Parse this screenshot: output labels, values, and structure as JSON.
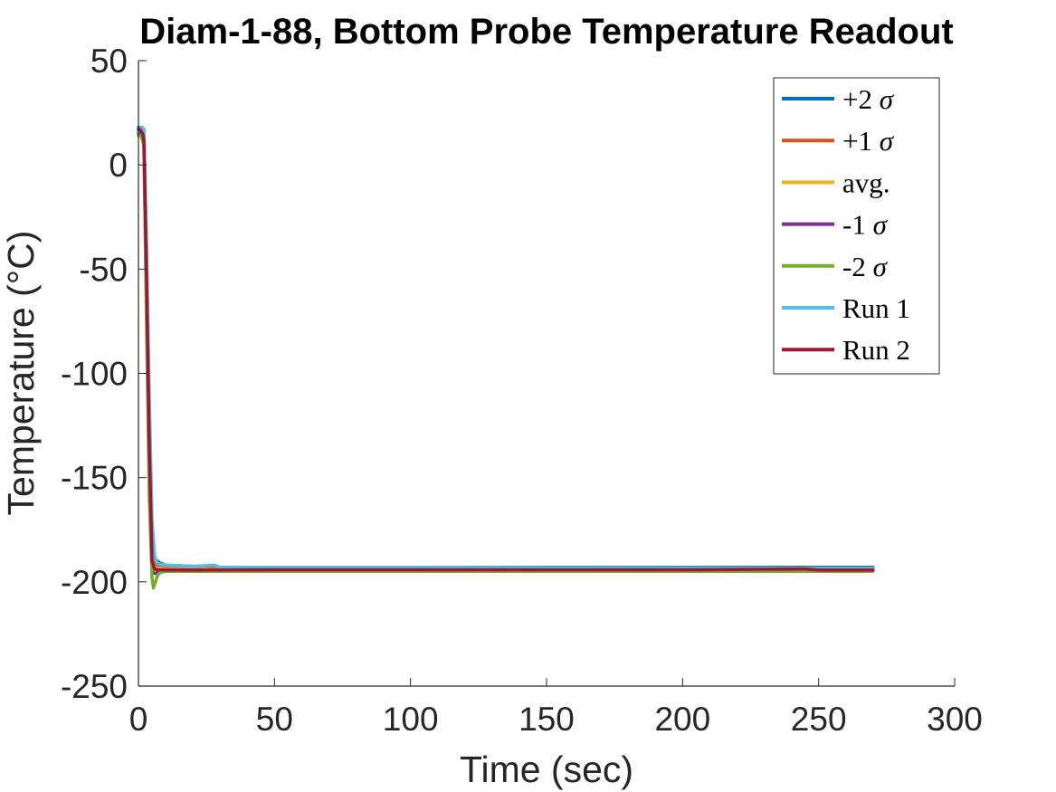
{
  "chart_data": {
    "type": "line",
    "title": "Diam-1-88, Bottom Probe Temperature Readout",
    "xlabel": "Time (sec)",
    "ylabel": "Temperature (°C)",
    "xlim": [
      0,
      300
    ],
    "ylim": [
      -250,
      50
    ],
    "xticks": [
      "0",
      "50",
      "100",
      "150",
      "200",
      "250",
      "300"
    ],
    "yticks": [
      "50",
      "0",
      "-50",
      "-100",
      "-150",
      "-200",
      "-250"
    ],
    "grid": false,
    "legend_position": "top-right",
    "series": [
      {
        "name": "+2 σ",
        "label_text": "+2",
        "color": "#0072BD",
        "x": [
          0,
          0.5,
          1,
          2,
          3,
          4,
          5,
          6,
          8,
          10,
          20,
          30,
          50,
          100,
          150,
          200,
          250,
          270
        ],
        "y": [
          18,
          18,
          18,
          17,
          -40,
          -120,
          -175,
          -189,
          -191,
          -192,
          -192.5,
          -193,
          -193,
          -193,
          -193,
          -193,
          -193,
          -193
        ]
      },
      {
        "name": "+1 σ",
        "label_text": "+1",
        "color": "#D95319",
        "x": [
          0,
          0.5,
          1,
          2,
          3,
          4,
          5,
          6,
          8,
          10,
          20,
          30,
          50,
          100,
          150,
          200,
          250,
          270
        ],
        "y": [
          17,
          17,
          17,
          15,
          -50,
          -130,
          -185,
          -192,
          -193,
          -193,
          -193.5,
          -193.5,
          -193.5,
          -193.5,
          -193.5,
          -193.5,
          -193.5,
          -193.5
        ]
      },
      {
        "name": "avg.",
        "label_text": "avg.",
        "color": "#EDB120",
        "x": [
          0,
          0.5,
          1,
          2,
          3,
          4,
          5,
          6,
          8,
          10,
          20,
          50,
          100,
          150,
          200,
          250,
          270
        ],
        "y": [
          16,
          16,
          16,
          13,
          -60,
          -140,
          -190,
          -193,
          -193.5,
          -194,
          -194,
          -194,
          -194,
          -194,
          -194,
          -194,
          -194
        ]
      },
      {
        "name": "-1 σ",
        "label_text": "-1",
        "color": "#7E2F8E",
        "x": [
          0,
          0.5,
          1,
          2,
          3,
          4,
          5,
          6,
          8,
          10,
          20,
          50,
          100,
          150,
          200,
          250,
          270
        ],
        "y": [
          15,
          15,
          15,
          11,
          -70,
          -150,
          -195,
          -196,
          -195,
          -194.5,
          -194.5,
          -194.5,
          -194.5,
          -194.5,
          -194.5,
          -194.5,
          -194.5
        ]
      },
      {
        "name": "-2 σ",
        "label_text": "-2",
        "color": "#77AC30",
        "x": [
          0,
          0.5,
          1,
          2,
          3,
          4,
          5,
          5.5,
          6,
          7,
          8,
          10,
          20,
          50,
          100,
          150,
          200,
          250,
          270
        ],
        "y": [
          14,
          14,
          14,
          9,
          -80,
          -160,
          -198,
          -203,
          -201,
          -197,
          -195.5,
          -195,
          -195,
          -195,
          -195,
          -195,
          -195,
          -195,
          -195
        ]
      },
      {
        "name": "Run 1",
        "label_text": "Run 1",
        "color": "#4DBEEE",
        "x": [
          0,
          0.5,
          1,
          1.5,
          2,
          3,
          4,
          5,
          6,
          7,
          8,
          10,
          20,
          28,
          30,
          50,
          100,
          150,
          200,
          250,
          270
        ],
        "y": [
          16,
          17,
          18,
          18,
          17,
          -40,
          -110,
          -170,
          -188,
          -191,
          -191.5,
          -192,
          -192.5,
          -192,
          -193,
          -193,
          -193,
          -193.2,
          -193.3,
          -193.5,
          -193.5
        ]
      },
      {
        "name": "Run 2",
        "label_text": "Run 2",
        "color": "#A2142F",
        "x": [
          0,
          0.5,
          1,
          1.5,
          2,
          3,
          4,
          5,
          6,
          8,
          10,
          20,
          50,
          100,
          150,
          200,
          245,
          250,
          270
        ],
        "y": [
          17,
          17,
          16,
          15,
          12,
          -55,
          -135,
          -190,
          -194,
          -194.2,
          -194.3,
          -194.3,
          -194.2,
          -194.2,
          -194.2,
          -194.2,
          -193.8,
          -194.3,
          -194.3
        ]
      }
    ]
  }
}
